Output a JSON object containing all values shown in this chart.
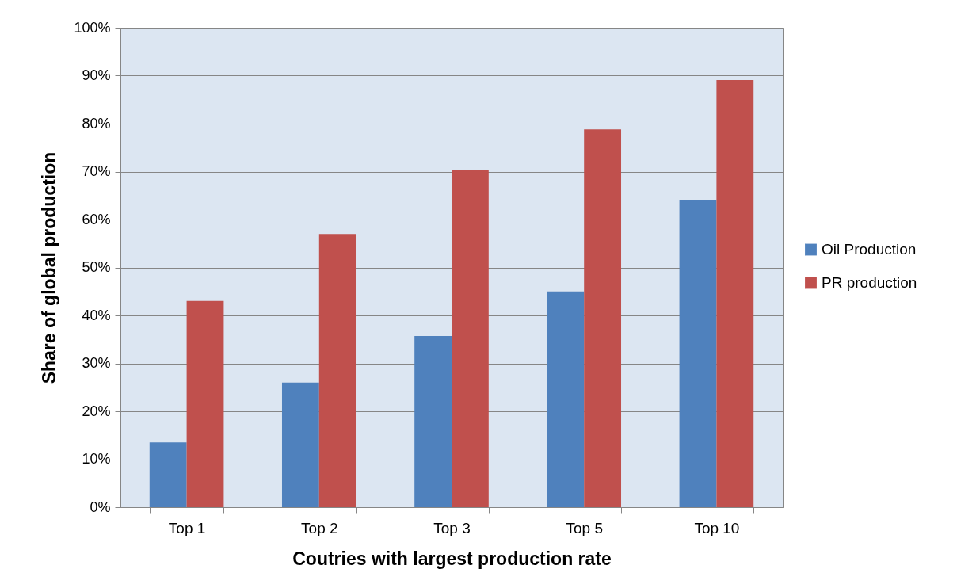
{
  "chart_data": {
    "type": "bar",
    "xlabel": "Coutries with largest production rate",
    "ylabel": "Share of global production",
    "categories": [
      "Top 1",
      "Top 2",
      "Top 3",
      "Top 5",
      "Top 10"
    ],
    "series": [
      {
        "name": "Oil Production",
        "color": "#4f81bd",
        "values": [
          13.5,
          26,
          35.7,
          45,
          64
        ]
      },
      {
        "name": "PR production",
        "color": "#c0504d",
        "values": [
          43,
          57,
          70.4,
          78.8,
          89.1
        ]
      }
    ],
    "ylim": [
      0,
      100
    ],
    "yticks": [
      {
        "value": 0,
        "label": "0%"
      },
      {
        "value": 10,
        "label": "10%"
      },
      {
        "value": 20,
        "label": "20%"
      },
      {
        "value": 30,
        "label": "30%"
      },
      {
        "value": 40,
        "label": "40%"
      },
      {
        "value": 50,
        "label": "50%"
      },
      {
        "value": 60,
        "label": "60%"
      },
      {
        "value": 70,
        "label": "70%"
      },
      {
        "value": 80,
        "label": "80%"
      },
      {
        "value": 90,
        "label": "90%"
      },
      {
        "value": 100,
        "label": "100%"
      }
    ],
    "grid": "y",
    "legend": "right"
  }
}
